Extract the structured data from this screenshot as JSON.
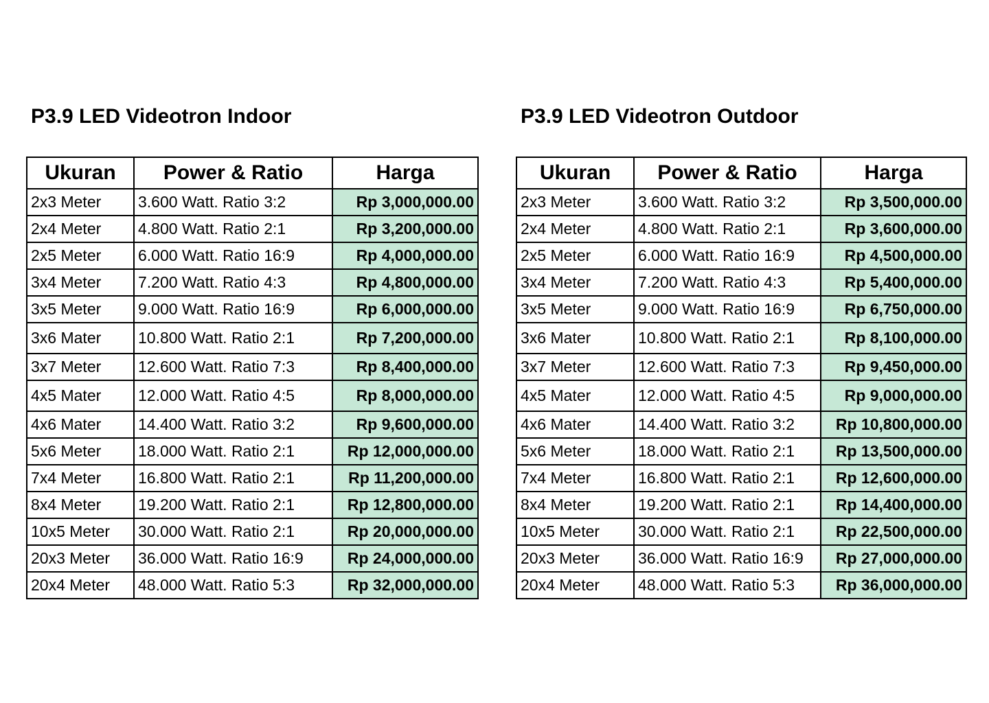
{
  "colors": {
    "price_cell_bg": "#c6e8d6",
    "border": "#000000",
    "text": "#000000"
  },
  "tables": [
    {
      "title": "P3.9 LED Videotron Indoor",
      "headers": [
        "Ukuran",
        "Power & Ratio",
        "Harga"
      ],
      "rows": [
        {
          "size": "2x3 Meter",
          "power": "3.600 Watt. Ratio 3:2",
          "price": "Rp 3,000,000.00"
        },
        {
          "size": "2x4 Meter",
          "power": "4.800 Watt. Ratio 2:1",
          "price": "Rp 3,200,000.00"
        },
        {
          "size": "2x5 Meter",
          "power": "6.000 Watt. Ratio 16:9",
          "price": "Rp 4,000,000.00"
        },
        {
          "size": "3x4 Meter",
          "power": "7.200 Watt. Ratio 4:3",
          "price": "Rp 4,800,000.00"
        },
        {
          "size": "3x5 Meter",
          "power": "9.000 Watt. Ratio 16:9",
          "price": "Rp 6,000,000.00"
        },
        {
          "size": "3x6 Mater",
          "power": "10.800 Watt. Ratio 2:1",
          "price": "Rp 7,200,000.00"
        },
        {
          "size": "3x7 Meter",
          "power": "12.600 Watt. Ratio 7:3",
          "price": "Rp 8,400,000.00"
        },
        {
          "size": "4x5 Mater",
          "power": "12.000 Watt. Ratio 4:5",
          "price": "Rp 8,000,000.00"
        },
        {
          "size": "4x6 Mater",
          "power": "14.400 Watt. Ratio 3:2",
          "price": "Rp 9,600,000.00"
        },
        {
          "size": "5x6 Meter",
          "power": "18.000 Watt. Ratio 2:1",
          "price": "Rp 12,000,000.00"
        },
        {
          "size": "7x4 Meter",
          "power": "16.800 Watt. Ratio 2:1",
          "price": "Rp 11,200,000.00"
        },
        {
          "size": "8x4 Meter",
          "power": "19.200 Watt. Ratio 2:1",
          "price": "Rp 12,800,000.00"
        },
        {
          "size": "10x5 Meter",
          "power": "30.000 Watt. Ratio 2:1",
          "price": "Rp 20,000,000.00"
        },
        {
          "size": "20x3 Meter",
          "power": "36.000 Watt. Ratio 16:9",
          "price": "Rp 24,000,000.00"
        },
        {
          "size": "20x4 Meter",
          "power": "48.000 Watt. Ratio 5:3",
          "price": "Rp 32,000,000.00"
        }
      ]
    },
    {
      "title": "P3.9 LED Videotron Outdoor",
      "headers": [
        "Ukuran",
        "Power & Ratio",
        "Harga"
      ],
      "rows": [
        {
          "size": "2x3 Meter",
          "power": "3.600 Watt. Ratio 3:2",
          "price": "Rp 3,500,000.00"
        },
        {
          "size": "2x4 Meter",
          "power": "4.800 Watt. Ratio 2:1",
          "price": "Rp 3,600,000.00"
        },
        {
          "size": "2x5 Meter",
          "power": "6.000 Watt. Ratio 16:9",
          "price": "Rp 4,500,000.00"
        },
        {
          "size": "3x4 Meter",
          "power": "7.200 Watt. Ratio 4:3",
          "price": "Rp 5,400,000.00"
        },
        {
          "size": "3x5 Meter",
          "power": "9.000 Watt. Ratio 16:9",
          "price": "Rp 6,750,000.00"
        },
        {
          "size": "3x6 Mater",
          "power": "10.800 Watt. Ratio 2:1",
          "price": "Rp 8,100,000.00"
        },
        {
          "size": "3x7 Meter",
          "power": "12.600 Watt. Ratio 7:3",
          "price": "Rp 9,450,000.00"
        },
        {
          "size": "4x5 Mater",
          "power": "12.000 Watt. Ratio 4:5",
          "price": "Rp 9,000,000.00"
        },
        {
          "size": "4x6 Mater",
          "power": "14.400 Watt. Ratio 3:2",
          "price": "Rp 10,800,000.00"
        },
        {
          "size": "5x6 Meter",
          "power": "18.000 Watt. Ratio 2:1",
          "price": "Rp 13,500,000.00"
        },
        {
          "size": "7x4 Meter",
          "power": "16.800 Watt. Ratio 2:1",
          "price": "Rp 12,600,000.00"
        },
        {
          "size": "8x4 Meter",
          "power": "19.200 Watt. Ratio 2:1",
          "price": "Rp 14,400,000.00"
        },
        {
          "size": "10x5 Meter",
          "power": "30.000 Watt. Ratio 2:1",
          "price": "Rp 22,500,000.00"
        },
        {
          "size": "20x3 Meter",
          "power": "36.000 Watt. Ratio 16:9",
          "price": "Rp 27,000,000.00"
        },
        {
          "size": "20x4 Meter",
          "power": "48.000 Watt. Ratio 5:3",
          "price": "Rp 36,000,000.00"
        }
      ]
    }
  ]
}
